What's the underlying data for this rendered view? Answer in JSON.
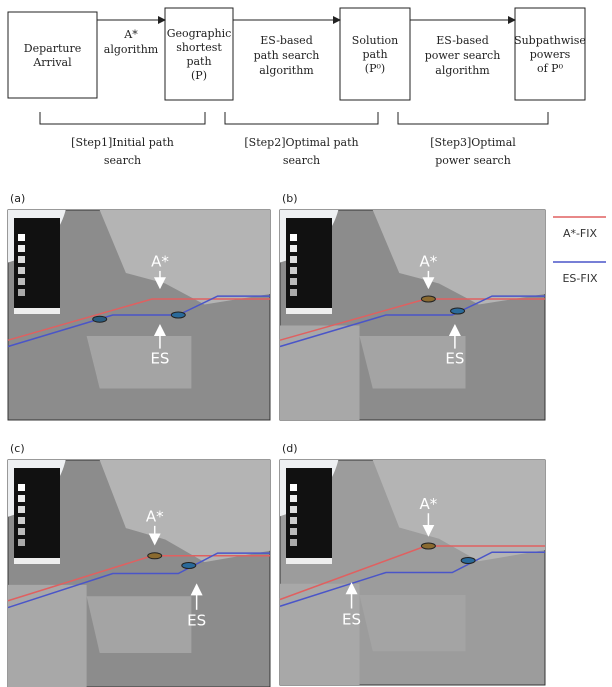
{
  "flow": {
    "nodes": [
      {
        "lines": [
          "Departure",
          "Arrival"
        ]
      },
      {
        "lines": [
          "Geographic",
          "shortest",
          "path",
          "(P)"
        ]
      },
      {
        "lines": [
          "Solution",
          "path",
          "(P⁰)"
        ]
      },
      {
        "lines": [
          "Subpathwise",
          "powers",
          "of P⁰"
        ]
      }
    ],
    "edges": [
      {
        "lines": [
          "A*",
          "algorithm"
        ]
      },
      {
        "lines": [
          "ES-based",
          "path search",
          "algorithm"
        ]
      },
      {
        "lines": [
          "ES-based",
          "power search",
          "algorithm"
        ]
      }
    ],
    "steps": [
      {
        "lines": [
          "[Step1]Initial path",
          "search"
        ]
      },
      {
        "lines": [
          "[Step2]Optimal path",
          "search"
        ]
      },
      {
        "lines": [
          "[Step3]Optimal",
          "power search"
        ]
      }
    ]
  },
  "panels": [
    {
      "label": "(a)",
      "annotations": [
        "A*",
        "ES"
      ]
    },
    {
      "label": "(b)",
      "annotations": [
        "A*",
        "ES"
      ]
    },
    {
      "label": "(c)",
      "annotations": [
        "A*",
        "ES"
      ]
    },
    {
      "label": "(d)",
      "annotations": [
        "A*",
        "ES"
      ]
    }
  ],
  "legend": [
    {
      "label": "A*-FIX",
      "color": "#e06060"
    },
    {
      "label": "ES-FIX",
      "color": "#4a55c8"
    }
  ]
}
